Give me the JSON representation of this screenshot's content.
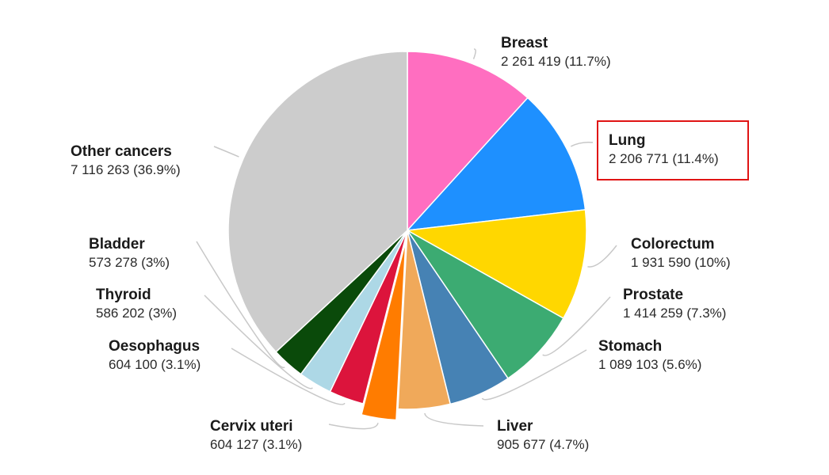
{
  "chart_data": {
    "type": "pie",
    "title": "",
    "start_angle_deg": 0,
    "direction": "clockwise",
    "slices": [
      {
        "label": "Breast",
        "value_text": "2 261 419 (11.7%)",
        "value": 2261419,
        "percent": 11.7,
        "color": "#ff6ec0"
      },
      {
        "label": "Lung",
        "value_text": "2 206 771 (11.4%)",
        "value": 2206771,
        "percent": 11.4,
        "color": "#1e90ff",
        "highlighted": true
      },
      {
        "label": "Colorectum",
        "value_text": "1 931 590 (10%)",
        "value": 1931590,
        "percent": 10.0,
        "color": "#ffd700"
      },
      {
        "label": "Prostate",
        "value_text": "1 414 259 (7.3%)",
        "value": 1414259,
        "percent": 7.3,
        "color": "#3cab72"
      },
      {
        "label": "Stomach",
        "value_text": "1 089 103 (5.6%)",
        "value": 1089103,
        "percent": 5.6,
        "color": "#4682b4"
      },
      {
        "label": "Liver",
        "value_text": "905 677 (4.7%)",
        "value": 905677,
        "percent": 4.7,
        "color": "#f0a95a"
      },
      {
        "label": "Cervix uteri",
        "value_text": "604 127 (3.1%)",
        "value": 604127,
        "percent": 3.1,
        "color": "#ff7c00",
        "exploded": true
      },
      {
        "label": "Oesophagus",
        "value_text": "604 100 (3.1%)",
        "value": 604100,
        "percent": 3.1,
        "color": "#dc143c"
      },
      {
        "label": "Thyroid",
        "value_text": "586 202 (3%)",
        "value": 586202,
        "percent": 3.0,
        "color": "#add8e6"
      },
      {
        "label": "Bladder",
        "value_text": "573 278 (3%)",
        "value": 573278,
        "percent": 3.0,
        "color": "#0a4a0a"
      },
      {
        "label": "Other cancers",
        "value_text": "7 116 263 (36.9%)",
        "value": 7116263,
        "percent": 36.9,
        "color": "#cccccc"
      }
    ]
  }
}
